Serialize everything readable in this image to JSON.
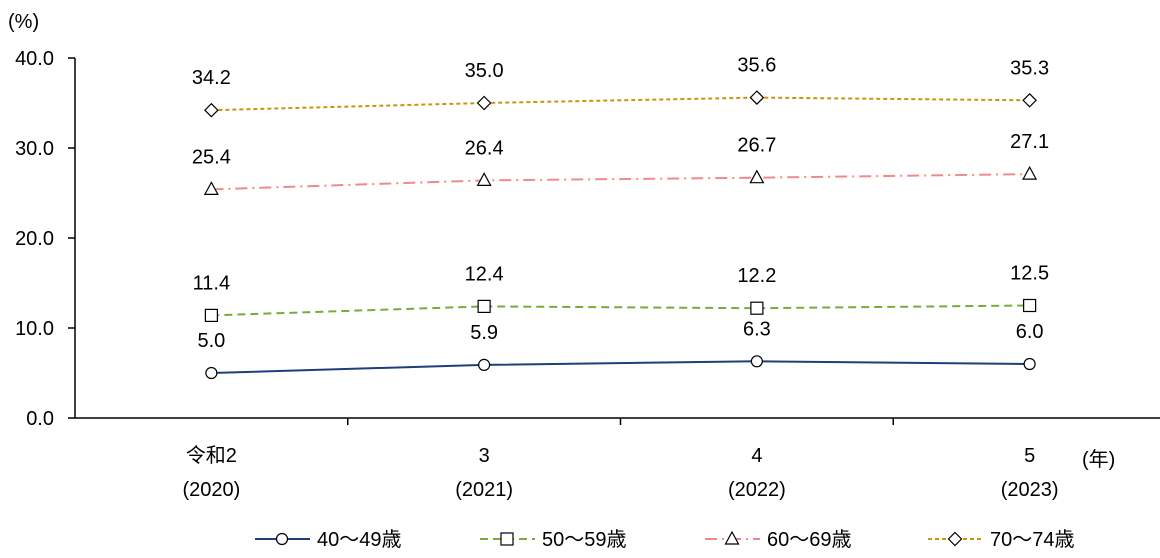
{
  "chart_data": {
    "type": "line",
    "title": "",
    "xlabel": "",
    "ylabel": "(%)",
    "x_unit": "(年)",
    "categories": [
      {
        "label": "令和2",
        "year": "(2020)"
      },
      {
        "label": "3",
        "year": "(2021)"
      },
      {
        "label": "4",
        "year": "(2022)"
      },
      {
        "label": "5",
        "year": "(2023)"
      }
    ],
    "ylim": [
      0,
      40
    ],
    "yticks": [
      "0.0",
      "10.0",
      "20.0",
      "30.0",
      "40.0"
    ],
    "grid": false,
    "legend_position": "bottom",
    "series": [
      {
        "name": "40〜49歳",
        "values": [
          5.0,
          5.9,
          6.3,
          6.0
        ],
        "labels": [
          "5.0",
          "5.9",
          "6.3",
          "6.0"
        ],
        "color": "#1f3f7a",
        "marker": "circle",
        "dash": "solid"
      },
      {
        "name": "50〜59歳",
        "values": [
          11.4,
          12.4,
          12.2,
          12.5
        ],
        "labels": [
          "11.4",
          "12.4",
          "12.2",
          "12.5"
        ],
        "color": "#7aab3a",
        "marker": "square",
        "dash": "dashed"
      },
      {
        "name": "60〜69歳",
        "values": [
          25.4,
          26.4,
          26.7,
          27.1
        ],
        "labels": [
          "25.4",
          "26.4",
          "26.7",
          "27.1"
        ],
        "color": "#f08a8a",
        "marker": "triangle",
        "dash": "dashdot"
      },
      {
        "name": "70〜74歳",
        "values": [
          34.2,
          35.0,
          35.6,
          35.3
        ],
        "labels": [
          "34.2",
          "35.0",
          "35.6",
          "35.3"
        ],
        "color": "#c8960c",
        "marker": "diamond",
        "dash": "dotted"
      }
    ]
  }
}
